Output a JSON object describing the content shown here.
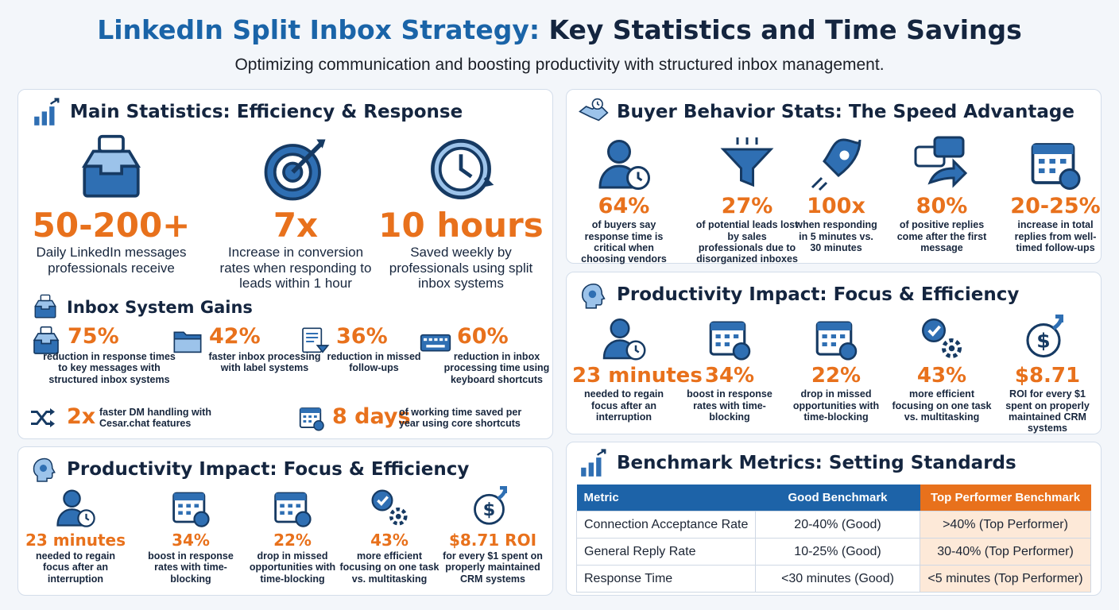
{
  "header": {
    "title_lead": "LinkedIn Split Inbox Strategy:",
    "title_rest": "Key Statistics and Time Savings",
    "subtitle": "Optimizing communication and boosting productivity with structured inbox management."
  },
  "main": {
    "title": "Main Statistics: Efficiency & Response",
    "stats": [
      {
        "value": "50-200+",
        "label": "Daily LinkedIn messages professionals receive"
      },
      {
        "value": "7x",
        "label": "Increase in conversion rates when responding to leads within 1 hour"
      },
      {
        "value": "10 hours",
        "label": "Saved weekly by professionals using split inbox systems"
      }
    ]
  },
  "gains": {
    "title": "Inbox System Gains",
    "items": [
      {
        "value": "75%",
        "label": "reduction in response times to key messages with structured inbox systems"
      },
      {
        "value": "42%",
        "label": "faster inbox processing with label systems"
      },
      {
        "value": "36%",
        "label": "reduction in missed follow-ups"
      },
      {
        "value": "60%",
        "label": "reduction in inbox processing time using keyboard shortcuts"
      }
    ],
    "extras": [
      {
        "value": "2x",
        "label": "faster DM handling with Cesar.chat features"
      },
      {
        "value": "8 days",
        "label": "of working time saved per year using core shortcuts"
      }
    ]
  },
  "productivity_left": {
    "title": "Productivity Impact: Focus & Efficiency",
    "items": [
      {
        "value": "23 minutes",
        "label": "needed to regain focus after an interruption"
      },
      {
        "value": "34%",
        "label": "boost in response rates with time-blocking"
      },
      {
        "value": "22%",
        "label": "drop in missed opportunities with time-blocking"
      },
      {
        "value": "43%",
        "label": "more efficient focusing on one task vs. multitasking"
      },
      {
        "value": "$8.71 ROI",
        "label": "for every $1 spent on properly maintained CRM systems"
      }
    ]
  },
  "buyer": {
    "title": "Buyer Behavior Stats: The Speed Advantage",
    "items": [
      {
        "value": "64%",
        "label": "of buyers say response time is critical when choosing vendors"
      },
      {
        "value": "27%",
        "label": "of potential leads lost by sales professionals due to disorganized inboxes"
      },
      {
        "value": "100x",
        "label": "when responding in 5 minutes vs. 30 minutes"
      },
      {
        "value": "80%",
        "label": "of positive replies come after the first message"
      },
      {
        "value": "20-25%",
        "label": "increase in total replies from well-timed follow-ups"
      }
    ]
  },
  "productivity_right": {
    "title": "Productivity Impact: Focus & Efficiency",
    "items": [
      {
        "value": "23 minutes",
        "label": "needed to regain focus after an interruption"
      },
      {
        "value": "34%",
        "label": "boost in response rates with time-blocking"
      },
      {
        "value": "22%",
        "label": "drop in missed opportunities with time-blocking"
      },
      {
        "value": "43%",
        "label": "more efficient focusing on one task vs. multitasking"
      },
      {
        "value": "$8.71",
        "label": "ROI for every $1 spent on properly maintained CRM systems"
      }
    ]
  },
  "benchmark": {
    "title": "Benchmark Metrics: Setting Standards",
    "columns": [
      "Metric",
      "Good Benchmark",
      "Top Performer Benchmark"
    ],
    "rows": [
      [
        "Connection Acceptance Rate",
        "20-40% (Good)",
        ">40% (Top Performer)"
      ],
      [
        "General Reply Rate",
        "10-25% (Good)",
        "30-40% (Top Performer)"
      ],
      [
        "Response Time",
        "<30 minutes (Good)",
        "<5 minutes (Top Performer)"
      ]
    ]
  }
}
